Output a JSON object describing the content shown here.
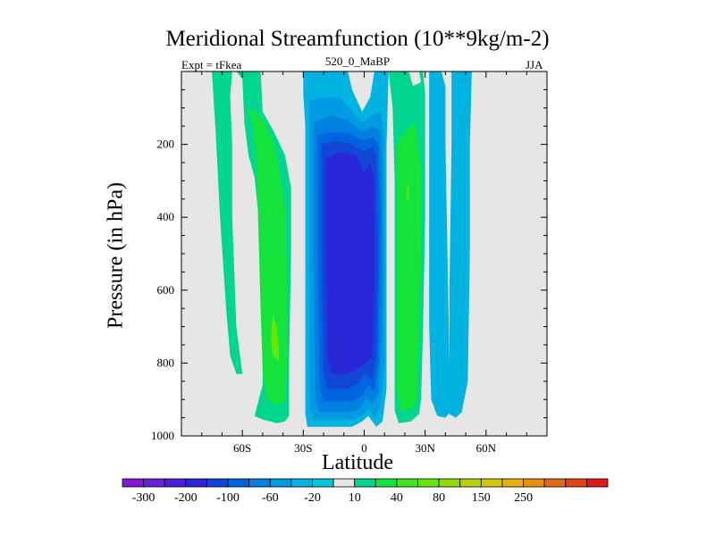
{
  "chart_data": {
    "type": "heatmap",
    "title": "Meridional Streamfunction (10**9kg/m-2)",
    "subtitle_left": "Expt = tFkea",
    "subtitle_center": "520_0_MaBP",
    "subtitle_right": "JJA",
    "xlabel": "Latitude",
    "ylabel": "Pressure (in hPa)",
    "xlim": [
      -90,
      90
    ],
    "ylim": [
      0,
      1000
    ],
    "y_reversed": true,
    "xticks": [
      {
        "value": -60,
        "label": "60S"
      },
      {
        "value": -30,
        "label": "30S"
      },
      {
        "value": 0,
        "label": "0"
      },
      {
        "value": 30,
        "label": "30N"
      },
      {
        "value": 60,
        "label": "60N"
      }
    ],
    "yticks": [
      {
        "value": 200,
        "label": "200"
      },
      {
        "value": 400,
        "label": "400"
      },
      {
        "value": 600,
        "label": "600"
      },
      {
        "value": 800,
        "label": "800"
      },
      {
        "value": 1000,
        "label": "1000"
      }
    ],
    "background_color": "#e6e6e6",
    "regions": [
      {
        "name": "sh-cell-outer",
        "value": 10,
        "color": "#00d68f",
        "points": [
          [
            -75,
            0
          ],
          [
            -63,
            0
          ],
          [
            -60,
            20
          ],
          [
            -59,
            140
          ],
          [
            -57,
            230
          ],
          [
            -54,
            290
          ],
          [
            -51,
            450
          ],
          [
            -50,
            700
          ],
          [
            -50,
            860
          ],
          [
            -54,
            945
          ],
          [
            -50,
            955
          ],
          [
            -43,
            965
          ],
          [
            -39,
            960
          ],
          [
            -37,
            945
          ],
          [
            -37,
            800
          ],
          [
            -36,
            500
          ],
          [
            -36,
            320
          ],
          [
            -39,
            230
          ],
          [
            -45,
            160
          ],
          [
            -50,
            110
          ],
          [
            -51,
            0
          ],
          [
            -65,
            0
          ],
          [
            -66,
            70
          ],
          [
            -65,
            200
          ],
          [
            -65,
            400
          ],
          [
            -63,
            700
          ],
          [
            -60,
            830
          ],
          [
            -63,
            830
          ],
          [
            -66,
            780
          ],
          [
            -68,
            650
          ],
          [
            -71,
            400
          ],
          [
            -73,
            180
          ]
        ]
      },
      {
        "name": "sh-cell-inner",
        "value": 20,
        "color": "#14e33c",
        "points": [
          [
            -57,
            100
          ],
          [
            -55,
            150
          ],
          [
            -53,
            250
          ],
          [
            -52,
            450
          ],
          [
            -51,
            650
          ],
          [
            -50,
            820
          ],
          [
            -48,
            900
          ],
          [
            -43,
            915
          ],
          [
            -39,
            905
          ],
          [
            -38,
            800
          ],
          [
            -38,
            550
          ],
          [
            -39,
            370
          ],
          [
            -42,
            260
          ],
          [
            -45,
            190
          ],
          [
            -49,
            140
          ],
          [
            -54,
            110
          ]
        ]
      },
      {
        "name": "sh-cell-core",
        "value": 40,
        "color": "#68e40b",
        "points": [
          [
            -45,
            665
          ],
          [
            -43,
            705
          ],
          [
            -42,
            760
          ],
          [
            -42,
            795
          ],
          [
            -45,
            780
          ],
          [
            -46,
            730
          ]
        ]
      },
      {
        "name": "sh-tropical-outer",
        "value": -20,
        "color": "#00b3e1",
        "points": [
          [
            -30,
            0
          ],
          [
            -8,
            0
          ],
          [
            -6,
            50
          ],
          [
            -1,
            110
          ],
          [
            3,
            70
          ],
          [
            5,
            0
          ],
          [
            12,
            0
          ],
          [
            11,
            200
          ],
          [
            11,
            600
          ],
          [
            11,
            870
          ],
          [
            9,
            960
          ],
          [
            6,
            975
          ],
          [
            2,
            945
          ],
          [
            -1,
            960
          ],
          [
            -6,
            975
          ],
          [
            -28,
            975
          ],
          [
            -29,
            940
          ],
          [
            -29,
            700
          ],
          [
            -29,
            300
          ],
          [
            -29,
            150
          ],
          [
            -30,
            60
          ]
        ]
      },
      {
        "name": "sh-tropical-l2",
        "value": -40,
        "color": "#009be2",
        "points": [
          [
            -27,
            80
          ],
          [
            -20,
            70
          ],
          [
            -12,
            70
          ],
          [
            -6,
            110
          ],
          [
            -1,
            140
          ],
          [
            4,
            120
          ],
          [
            8,
            110
          ],
          [
            10,
            180
          ],
          [
            10,
            500
          ],
          [
            10,
            800
          ],
          [
            8,
            920
          ],
          [
            5,
            950
          ],
          [
            2,
            925
          ],
          [
            -1,
            945
          ],
          [
            -6,
            955
          ],
          [
            -25,
            955
          ],
          [
            -27,
            920
          ],
          [
            -27,
            600
          ],
          [
            -27,
            250
          ]
        ]
      },
      {
        "name": "sh-tropical-l3",
        "value": -60,
        "color": "#0080e0",
        "points": [
          [
            -25,
            140
          ],
          [
            -16,
            120
          ],
          [
            -8,
            135
          ],
          [
            -1,
            165
          ],
          [
            4,
            150
          ],
          [
            8,
            165
          ],
          [
            9,
            300
          ],
          [
            9,
            700
          ],
          [
            7,
            880
          ],
          [
            4,
            915
          ],
          [
            1,
            895
          ],
          [
            -2,
            925
          ],
          [
            -7,
            935
          ],
          [
            -22,
            935
          ],
          [
            -24,
            900
          ],
          [
            -25,
            500
          ]
        ]
      },
      {
        "name": "sh-tropical-l4",
        "value": -80,
        "color": "#0064e0",
        "points": [
          [
            -23,
            175
          ],
          [
            -15,
            165
          ],
          [
            -7,
            170
          ],
          [
            -1,
            190
          ],
          [
            4,
            180
          ],
          [
            7,
            200
          ],
          [
            8,
            400
          ],
          [
            7,
            800
          ],
          [
            5,
            875
          ],
          [
            2,
            860
          ],
          [
            -1,
            890
          ],
          [
            -6,
            905
          ],
          [
            -20,
            905
          ],
          [
            -22,
            870
          ],
          [
            -23,
            500
          ]
        ]
      },
      {
        "name": "sh-tropical-l5",
        "value": -100,
        "color": "#1146d7",
        "points": [
          [
            -21,
            200
          ],
          [
            -14,
            190
          ],
          [
            -6,
            200
          ],
          [
            0,
            220
          ],
          [
            4,
            205
          ],
          [
            6,
            230
          ],
          [
            7,
            500
          ],
          [
            6,
            780
          ],
          [
            4,
            845
          ],
          [
            0,
            830
          ],
          [
            -3,
            855
          ],
          [
            -8,
            870
          ],
          [
            -18,
            870
          ],
          [
            -20,
            830
          ],
          [
            -21,
            500
          ]
        ]
      },
      {
        "name": "sh-tropical-core",
        "value": -200,
        "color": "#2a27d8",
        "points": [
          [
            -19,
            240
          ],
          [
            -12,
            220
          ],
          [
            -4,
            230
          ],
          [
            0,
            280
          ],
          [
            3,
            250
          ],
          [
            5,
            300
          ],
          [
            5,
            600
          ],
          [
            4,
            780
          ],
          [
            1,
            800
          ],
          [
            -3,
            815
          ],
          [
            -8,
            830
          ],
          [
            -16,
            830
          ],
          [
            -18,
            790
          ],
          [
            -19,
            500
          ]
        ]
      },
      {
        "name": "nh-cell-outer",
        "value": 10,
        "color": "#00d68f",
        "points": [
          [
            12,
            0
          ],
          [
            22,
            0
          ],
          [
            24,
            40
          ],
          [
            28,
            30
          ],
          [
            27,
            0
          ],
          [
            29,
            0
          ],
          [
            30,
            60
          ],
          [
            30,
            400
          ],
          [
            29,
            700
          ],
          [
            28,
            900
          ],
          [
            27,
            940
          ],
          [
            23,
            960
          ],
          [
            17,
            965
          ],
          [
            15,
            930
          ],
          [
            15,
            600
          ],
          [
            15,
            300
          ],
          [
            14,
            100
          ]
        ]
      },
      {
        "name": "nh-cell-inner",
        "value": 20,
        "color": "#14e33c",
        "points": [
          [
            16,
            200
          ],
          [
            21,
            160
          ],
          [
            25,
            140
          ],
          [
            28,
            260
          ],
          [
            28,
            500
          ],
          [
            27,
            750
          ],
          [
            26,
            900
          ],
          [
            23,
            930
          ],
          [
            18,
            930
          ],
          [
            16,
            880
          ],
          [
            16,
            500
          ]
        ]
      },
      {
        "name": "nh-cell-core",
        "value": 40,
        "color": "#68e40b",
        "points": [
          [
            21,
            320
          ],
          [
            22,
            315
          ],
          [
            22,
            345
          ],
          [
            21,
            360
          ]
        ]
      },
      {
        "name": "nh-midlat-outer",
        "value": -20,
        "color": "#00b3e1",
        "points": [
          [
            32,
            0
          ],
          [
            38,
            0
          ],
          [
            40,
            40
          ],
          [
            40,
            200
          ],
          [
            41,
            500
          ],
          [
            42,
            800
          ],
          [
            43,
            930
          ],
          [
            40,
            950
          ],
          [
            36,
            945
          ],
          [
            33,
            900
          ],
          [
            32,
            700
          ],
          [
            32,
            300
          ]
        ]
      },
      {
        "name": "nh-midlat-north",
        "value": -20,
        "color": "#00b3e1",
        "points": [
          [
            43,
            0
          ],
          [
            53,
            0
          ],
          [
            52,
            200
          ],
          [
            52,
            500
          ],
          [
            51,
            850
          ],
          [
            48,
            935
          ],
          [
            45,
            950
          ],
          [
            42,
            940
          ],
          [
            42,
            600
          ],
          [
            43,
            200
          ]
        ]
      }
    ],
    "colorbar": {
      "labels": [
        "-300",
        "-200",
        "-100",
        "-60",
        "-20",
        "10",
        "40",
        "80",
        "150",
        "250"
      ],
      "colors": [
        "#8418d9",
        "#6a1ddb",
        "#4b1fd9",
        "#2a27d8",
        "#1146d7",
        "#0064e0",
        "#0080e0",
        "#009be2",
        "#00b3e1",
        "#00c8d8",
        "#e6e6e6",
        "#00d68f",
        "#14e33c",
        "#40e720",
        "#68e40b",
        "#8fdc0a",
        "#b5d20d",
        "#d6c50f",
        "#e6b00e",
        "#e89010",
        "#e46b13",
        "#e04418",
        "#dc1c1c"
      ]
    }
  }
}
